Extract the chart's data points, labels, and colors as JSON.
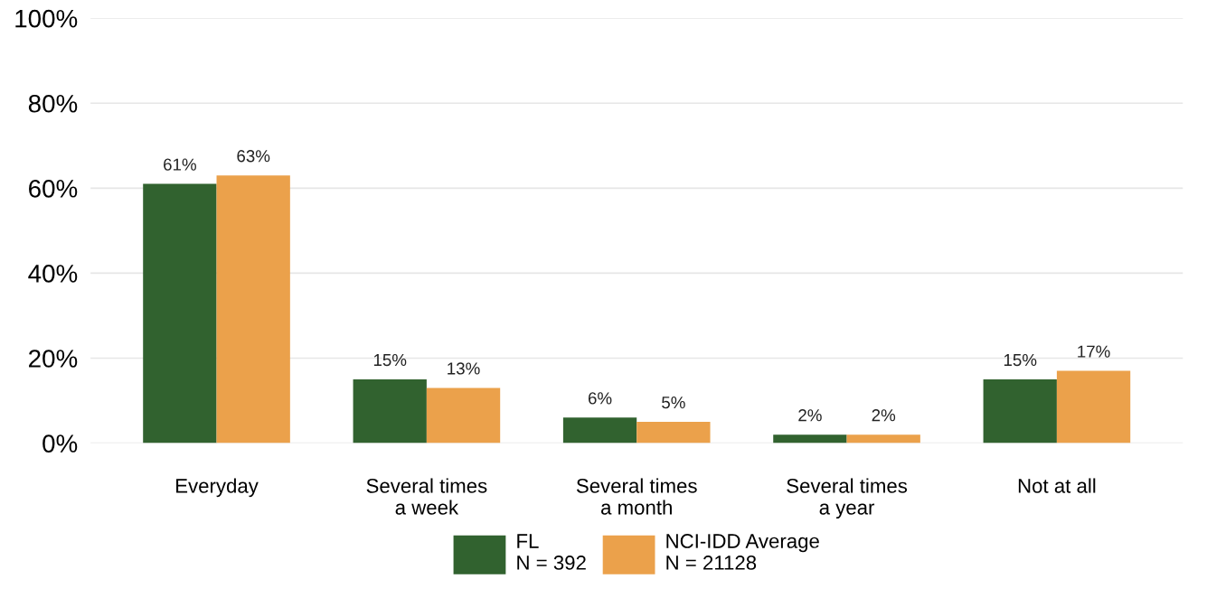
{
  "chart_data": {
    "type": "bar",
    "categories": [
      "Everyday",
      "Several times\na week",
      "Several times\na month",
      "Several times\na year",
      "Not at all"
    ],
    "series": [
      {
        "name": "FL\nN = 392",
        "color": "#31622f",
        "values": [
          61,
          15,
          6,
          2,
          15
        ],
        "value_labels": [
          "61%",
          "15%",
          "6%",
          "2%",
          "15%"
        ]
      },
      {
        "name": "NCI-IDD Average\nN = 21128",
        "color": "#eba14b",
        "values": [
          63,
          13,
          5,
          2,
          17
        ],
        "value_labels": [
          "63%",
          "13%",
          "5%",
          "2%",
          "17%"
        ]
      }
    ],
    "ylim": [
      0,
      100
    ],
    "yticks": [
      {
        "value": 0,
        "label": "0%"
      },
      {
        "value": 20,
        "label": "20%"
      },
      {
        "value": 40,
        "label": "40%"
      },
      {
        "value": 60,
        "label": "60%"
      },
      {
        "value": 80,
        "label": "80%"
      },
      {
        "value": 100,
        "label": "100%"
      }
    ],
    "grid": "y",
    "legend": "bottom"
  }
}
